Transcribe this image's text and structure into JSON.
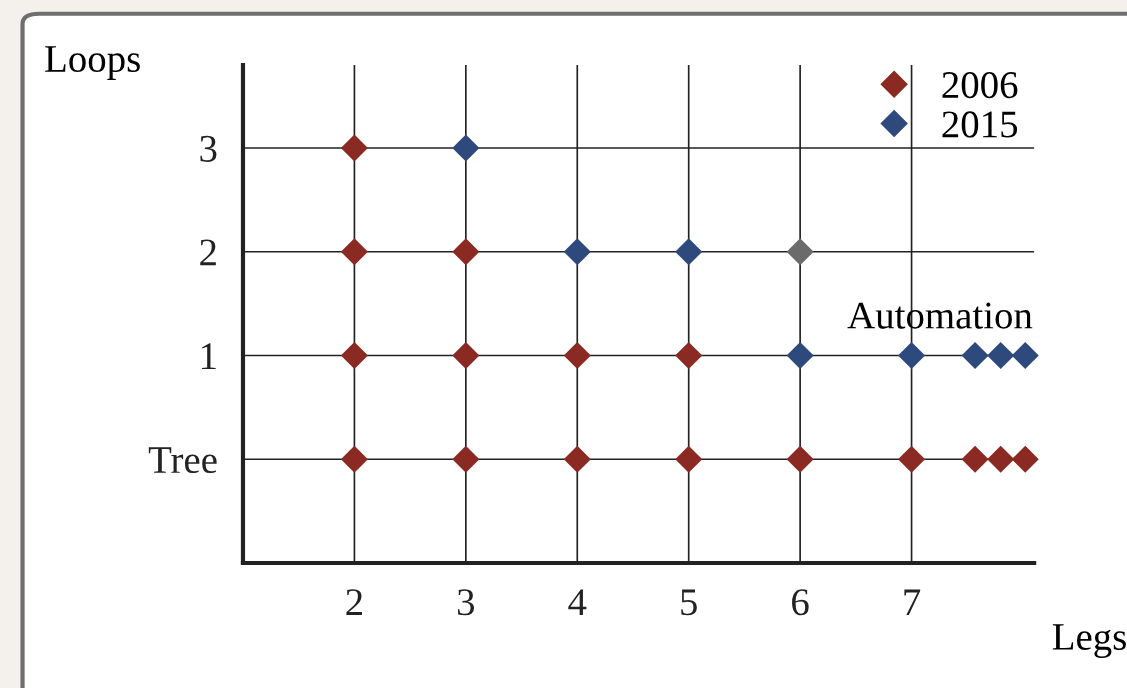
{
  "chart_data": {
    "type": "scatter",
    "xlabel": "Legs",
    "ylabel": "Loops",
    "xlim": [
      1,
      8.1
    ],
    "xticks": [
      2,
      3,
      4,
      5,
      6,
      7
    ],
    "ylim": [
      -1,
      3.8
    ],
    "yticks": [
      {
        "value": 0,
        "label": "Tree"
      },
      1,
      2,
      3
    ],
    "grid": true,
    "legend": "top right",
    "marker": "diamond",
    "series": [
      {
        "name": "2006",
        "color": "#8b2a23",
        "x": [
          2,
          2,
          3,
          2,
          3,
          4,
          5,
          2,
          3,
          4,
          5,
          6,
          7,
          7.57,
          7.8,
          8.02
        ],
        "values": [
          3,
          2,
          2,
          1,
          1,
          1,
          1,
          0,
          0,
          0,
          0,
          0,
          0,
          0,
          0,
          0
        ]
      },
      {
        "name": "2015",
        "color": "#2e4a7d",
        "x": [
          3,
          4,
          5,
          6,
          7,
          7.57,
          7.8,
          8.02
        ],
        "values": [
          3,
          2,
          2,
          1,
          1,
          1,
          1,
          1
        ]
      },
      {
        "color": "#6b6b6b",
        "x": [
          6
        ],
        "values": [
          2
        ]
      }
    ],
    "annotations": [
      "Automation"
    ]
  }
}
